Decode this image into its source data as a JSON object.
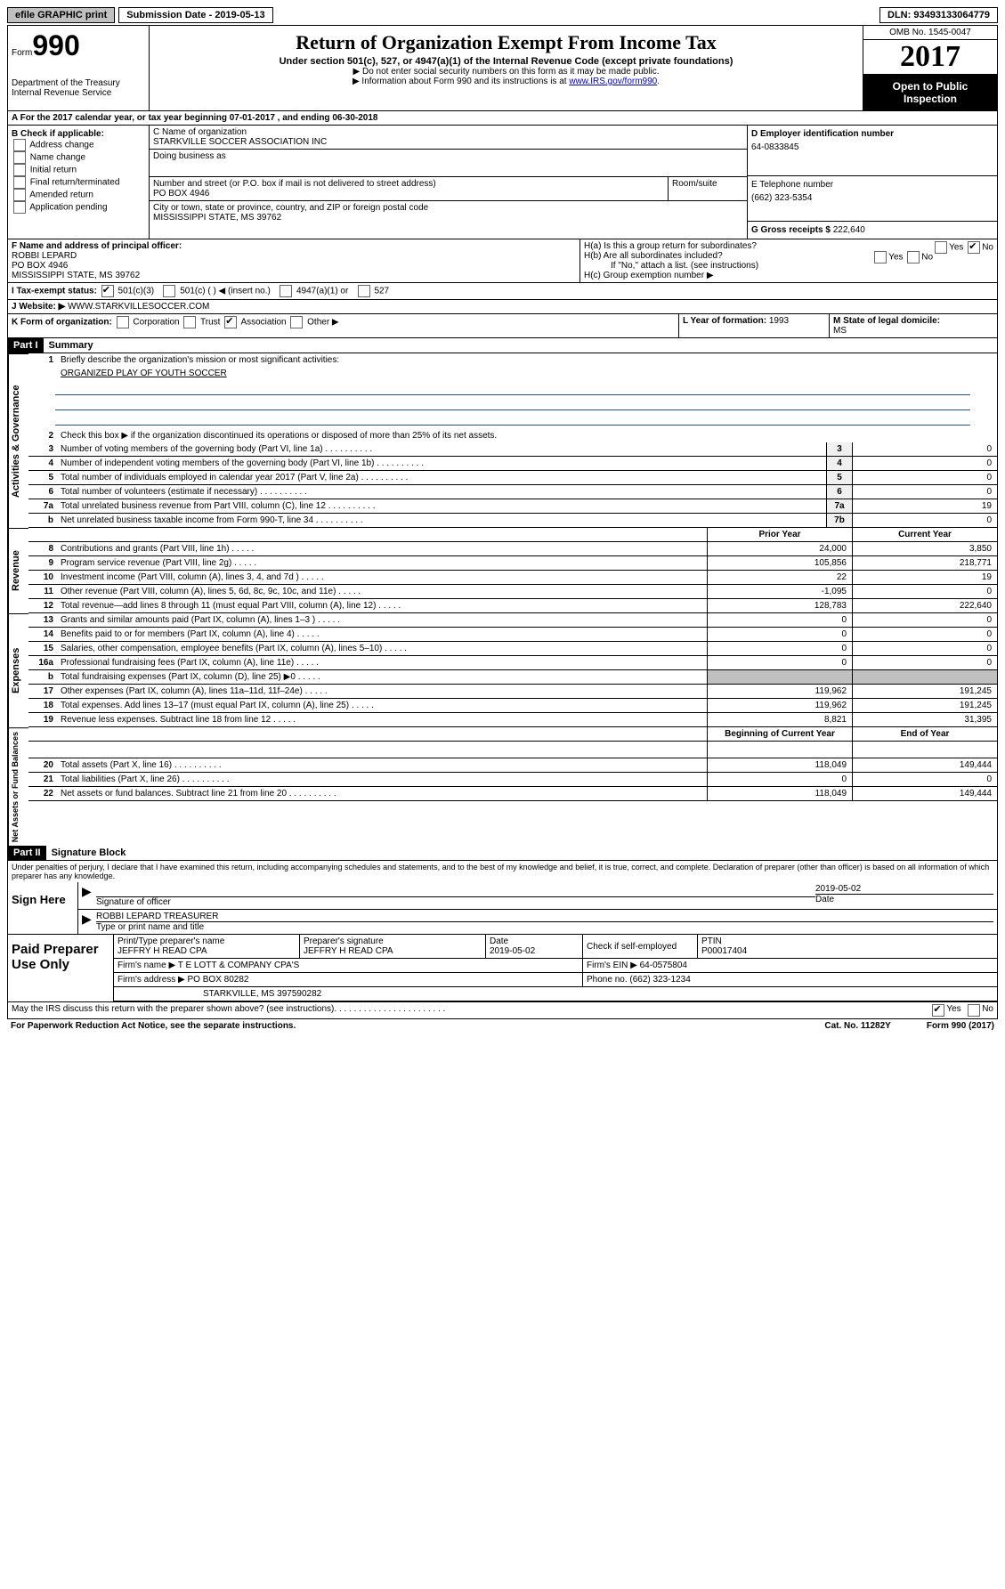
{
  "topbar": {
    "efile": "efile GRAPHIC print",
    "submission_label": "Submission Date - 2019-05-13",
    "dln": "DLN: 93493133064779"
  },
  "header": {
    "form_label": "Form",
    "form_number": "990",
    "dept": "Department of the Treasury",
    "irs": "Internal Revenue Service",
    "title": "Return of Organization Exempt From Income Tax",
    "subtitle": "Under section 501(c), 527, or 4947(a)(1) of the Internal Revenue Code (except private foundations)",
    "note1": "▶ Do not enter social security numbers on this form as it may be made public.",
    "note2": "▶ Information about Form 990 and its instructions is at ",
    "link": "www.IRS.gov/form990",
    "omb": "OMB No. 1545-0047",
    "year": "2017",
    "open": "Open to Public Inspection"
  },
  "row_a": "A  For the 2017 calendar year, or tax year beginning 07-01-2017   , and ending 06-30-2018",
  "col_b": {
    "label": "B Check if applicable:",
    "items": [
      "Address change",
      "Name change",
      "Initial return",
      "Final return/terminated",
      "Amended return",
      "Application pending"
    ]
  },
  "col_c": {
    "name_label": "C Name of organization",
    "name": "STARKVILLE SOCCER ASSOCIATION INC",
    "dba_label": "Doing business as",
    "dba": "",
    "addr_label": "Number and street (or P.O. box if mail is not delivered to street address)",
    "room_label": "Room/suite",
    "addr": "PO BOX 4946",
    "city_label": "City or town, state or province, country, and ZIP or foreign postal code",
    "city": "MISSISSIPPI STATE, MS  39762"
  },
  "col_d": {
    "ein_label": "D Employer identification number",
    "ein": "64-0833845",
    "phone_label": "E Telephone number",
    "phone": "(662) 323-5354",
    "gross_label": "G Gross receipts $ ",
    "gross": "222,640"
  },
  "f": {
    "label": "F  Name and address of principal officer:",
    "name": "ROBBI LEPARD",
    "addr": "PO BOX 4946",
    "city": "MISSISSIPPI STATE, MS  39762"
  },
  "h": {
    "a": "H(a)  Is this a group return for subordinates?",
    "b": "H(b)  Are all subordinates included?",
    "note": "If \"No,\" attach a list. (see instructions)",
    "c": "H(c)  Group exemption number ▶",
    "yes": "Yes",
    "no": "No"
  },
  "i": {
    "label": "I  Tax-exempt status:",
    "opts": [
      "501(c)(3)",
      "501(c) (  ) ◀ (insert no.)",
      "4947(a)(1) or",
      "527"
    ]
  },
  "j": {
    "label": "J  Website: ▶",
    "val": "WWW.STARKVILLESOCCER.COM"
  },
  "k": {
    "label": "K Form of organization:",
    "opts": [
      "Corporation",
      "Trust",
      "Association",
      "Other ▶"
    ]
  },
  "l": {
    "label": "L Year of formation: ",
    "val": "1993"
  },
  "m": {
    "label": "M State of legal domicile: ",
    "val": "MS"
  },
  "part1": {
    "header": "Part I",
    "title": "Summary"
  },
  "gov": {
    "q1": "Briefly describe the organization's mission or most significant activities:",
    "mission": "ORGANIZED PLAY OF YOUTH SOCCER",
    "q2": "Check this box ▶        if the organization discontinued its operations or disposed of more than 25% of its net assets.",
    "rows": [
      {
        "n": "3",
        "d": "Number of voting members of the governing body (Part VI, line 1a)",
        "ln": "3",
        "v": "0"
      },
      {
        "n": "4",
        "d": "Number of independent voting members of the governing body (Part VI, line 1b)",
        "ln": "4",
        "v": "0"
      },
      {
        "n": "5",
        "d": "Total number of individuals employed in calendar year 2017 (Part V, line 2a)",
        "ln": "5",
        "v": "0"
      },
      {
        "n": "6",
        "d": "Total number of volunteers (estimate if necessary)",
        "ln": "6",
        "v": "0"
      },
      {
        "n": "7a",
        "d": "Total unrelated business revenue from Part VIII, column (C), line 12",
        "ln": "7a",
        "v": "19"
      },
      {
        "n": "b",
        "d": "Net unrelated business taxable income from Form 990-T, line 34",
        "ln": "7b",
        "v": "0"
      }
    ]
  },
  "revenue": {
    "header_prior": "Prior Year",
    "header_current": "Current Year",
    "rows": [
      {
        "n": "8",
        "d": "Contributions and grants (Part VIII, line 1h)",
        "p": "24,000",
        "c": "3,850"
      },
      {
        "n": "9",
        "d": "Program service revenue (Part VIII, line 2g)",
        "p": "105,856",
        "c": "218,771"
      },
      {
        "n": "10",
        "d": "Investment income (Part VIII, column (A), lines 3, 4, and 7d )",
        "p": "22",
        "c": "19"
      },
      {
        "n": "11",
        "d": "Other revenue (Part VIII, column (A), lines 5, 6d, 8c, 9c, 10c, and 11e)",
        "p": "-1,095",
        "c": "0"
      },
      {
        "n": "12",
        "d": "Total revenue—add lines 8 through 11 (must equal Part VIII, column (A), line 12)",
        "p": "128,783",
        "c": "222,640"
      }
    ]
  },
  "expenses": {
    "rows": [
      {
        "n": "13",
        "d": "Grants and similar amounts paid (Part IX, column (A), lines 1–3 )",
        "p": "0",
        "c": "0"
      },
      {
        "n": "14",
        "d": "Benefits paid to or for members (Part IX, column (A), line 4)",
        "p": "0",
        "c": "0"
      },
      {
        "n": "15",
        "d": "Salaries, other compensation, employee benefits (Part IX, column (A), lines 5–10)",
        "p": "0",
        "c": "0"
      },
      {
        "n": "16a",
        "d": "Professional fundraising fees (Part IX, column (A), line 11e)",
        "p": "0",
        "c": "0"
      },
      {
        "n": "b",
        "d": "Total fundraising expenses (Part IX, column (D), line 25) ▶0",
        "p": "",
        "c": "",
        "grey": true
      },
      {
        "n": "17",
        "d": "Other expenses (Part IX, column (A), lines 11a–11d, 11f–24e)",
        "p": "119,962",
        "c": "191,245"
      },
      {
        "n": "18",
        "d": "Total expenses. Add lines 13–17 (must equal Part IX, column (A), line 25)",
        "p": "119,962",
        "c": "191,245"
      },
      {
        "n": "19",
        "d": "Revenue less expenses. Subtract line 18 from line 12",
        "p": "8,821",
        "c": "31,395"
      }
    ]
  },
  "netassets": {
    "header_begin": "Beginning of Current Year",
    "header_end": "End of Year",
    "rows": [
      {
        "n": "20",
        "d": "Total assets (Part X, line 16)",
        "p": "118,049",
        "c": "149,444"
      },
      {
        "n": "21",
        "d": "Total liabilities (Part X, line 26)",
        "p": "0",
        "c": "0"
      },
      {
        "n": "22",
        "d": "Net assets or fund balances. Subtract line 21 from line 20",
        "p": "118,049",
        "c": "149,444"
      }
    ]
  },
  "part2": {
    "header": "Part II",
    "title": "Signature Block"
  },
  "perjury": "Under penalties of perjury, I declare that I have examined this return, including accompanying schedules and statements, and to the best of my knowledge and belief, it is true, correct, and complete. Declaration of preparer (other than officer) is based on all information of which preparer has any knowledge.",
  "sign": {
    "label": "Sign Here",
    "sig_of": "Signature of officer",
    "date": "2019-05-02",
    "date_label": "Date",
    "name": "ROBBI LEPARD TREASURER",
    "name_label": "Type or print name and title"
  },
  "prep": {
    "label": "Paid Preparer Use Only",
    "r1": {
      "a": "Print/Type preparer's name",
      "av": "JEFFRY H READ CPA",
      "b": "Preparer's signature",
      "bv": "JEFFRY H READ CPA",
      "c": "Date",
      "cv": "2019-05-02",
      "d": "Check        if self-employed",
      "e": "PTIN",
      "ev": "P00017404"
    },
    "r2": {
      "a": "Firm's name     ▶ ",
      "av": "T E LOTT & COMPANY CPA'S",
      "b": "Firm's EIN ▶ ",
      "bv": "64-0575804"
    },
    "r3": {
      "a": "Firm's address ▶ ",
      "av": "PO BOX 80282",
      "b": "Phone no. ",
      "bv": "(662) 323-1234"
    },
    "r4": {
      "a": "",
      "av": "STARKVILLE, MS  397590282"
    }
  },
  "discuss": "May the IRS discuss this return with the preparer shown above? (see instructions)",
  "footer": {
    "left": "For Paperwork Reduction Act Notice, see the separate instructions.",
    "mid": "Cat. No. 11282Y",
    "right": "Form 990 (2017)"
  },
  "vlabels": {
    "gov": "Activities & Governance",
    "rev": "Revenue",
    "exp": "Expenses",
    "net": "Net Assets or Fund Balances"
  }
}
